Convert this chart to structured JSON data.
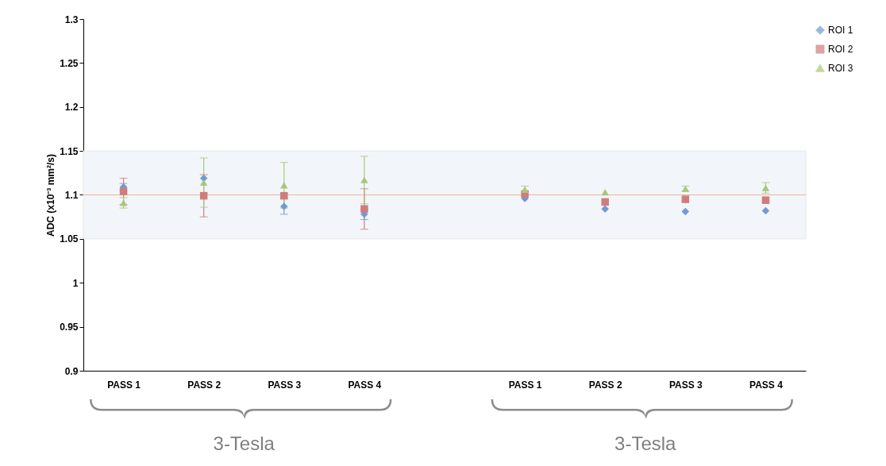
{
  "chart_data": {
    "type": "scatter",
    "categories": [
      "PASS 1",
      "PASS 2",
      "PASS 3",
      "PASS 4",
      null,
      "PASS 1",
      "PASS 2",
      "PASS 3",
      "PASS 4"
    ],
    "ylabel": "ADC (x10⁻³ mm²/s)",
    "ylim": [
      0.9,
      1.3
    ],
    "yticks": [
      0.9,
      0.95,
      1,
      1.05,
      1.1,
      1.15,
      1.2,
      1.25,
      1.3
    ],
    "series": [
      {
        "name": "ROI 1",
        "color": "#6f9bd3",
        "marker": "diamond",
        "values": [
          1.109,
          1.119,
          1.087,
          1.078,
          null,
          1.096,
          1.084,
          1.081,
          1.082
        ],
        "errors": [
          0.004,
          null,
          0.009,
          0.006,
          null,
          null,
          null,
          null,
          null
        ]
      },
      {
        "name": "ROI 2",
        "color": "#d07c7c",
        "marker": "square",
        "values": [
          1.104,
          1.099,
          1.099,
          1.084,
          null,
          1.101,
          1.092,
          1.095,
          1.094
        ],
        "errors": [
          0.015,
          0.024,
          null,
          0.023,
          null,
          null,
          null,
          null,
          null
        ]
      },
      {
        "name": "ROI 3",
        "color": "#a9c77b",
        "marker": "triangle",
        "values": [
          1.091,
          1.114,
          1.111,
          1.117,
          null,
          1.106,
          1.103,
          1.107,
          1.108
        ],
        "errors": [
          0.006,
          0.028,
          0.026,
          0.027,
          null,
          0.004,
          null,
          0.003,
          0.006
        ]
      }
    ],
    "ref_lines": [
      {
        "axis": "y",
        "value": 1.1,
        "color": "#f0b590"
      }
    ],
    "bands": [
      {
        "axis": "y",
        "from": 1.05,
        "to": 1.15,
        "color": "#f2f6fa"
      }
    ],
    "annotations": [
      "3-Tesla",
      "3-Tesla"
    ],
    "legend": "top right"
  }
}
